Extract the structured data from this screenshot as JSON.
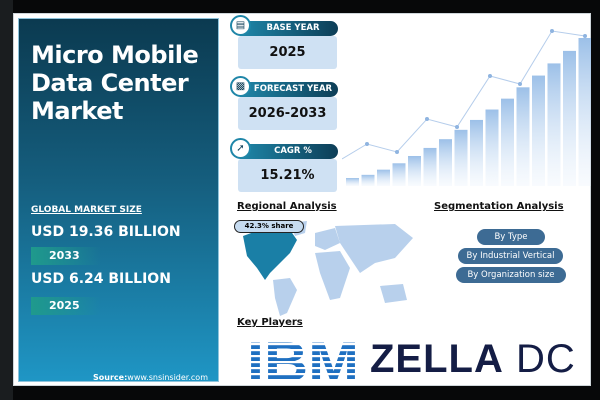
{
  "title_lines": [
    "Micro Mobile",
    "Data Center",
    "Market"
  ],
  "market_size": {
    "label": "GLOBAL MARKET SIZE",
    "forecast_value": "USD 19.36 BILLION",
    "forecast_year": "2033",
    "base_value": "USD 6.24 BILLION",
    "base_year": "2025"
  },
  "source": {
    "label": "Source:",
    "url": "www.snsinsider.com"
  },
  "stats": [
    {
      "label": "BASE YEAR",
      "value": "2025",
      "icon": "document-icon"
    },
    {
      "label": "FORECAST YEAR",
      "value": "2026-2033",
      "icon": "chart-icon"
    },
    {
      "label": "CAGR %",
      "value": "15.21%",
      "icon": "growth-icon"
    }
  ],
  "regional": {
    "heading": "Regional Analysis",
    "share": "42.3% share",
    "region_highlight": "North America"
  },
  "segmentation": {
    "heading": "Segmentation Analysis",
    "items": [
      "By Type",
      "By Industrial Vertical",
      "By Organization size"
    ]
  },
  "key_players": {
    "heading": "Key Players",
    "logos": [
      "IBM",
      "ZELLA DC"
    ]
  },
  "colors": {
    "panel_dark": "#0b3a50",
    "panel_light": "#1f96c5",
    "pill": "#3d6b94",
    "stat_box": "#cfe1f3",
    "zella": "#141d45",
    "ibm": "#1f70c1"
  }
}
